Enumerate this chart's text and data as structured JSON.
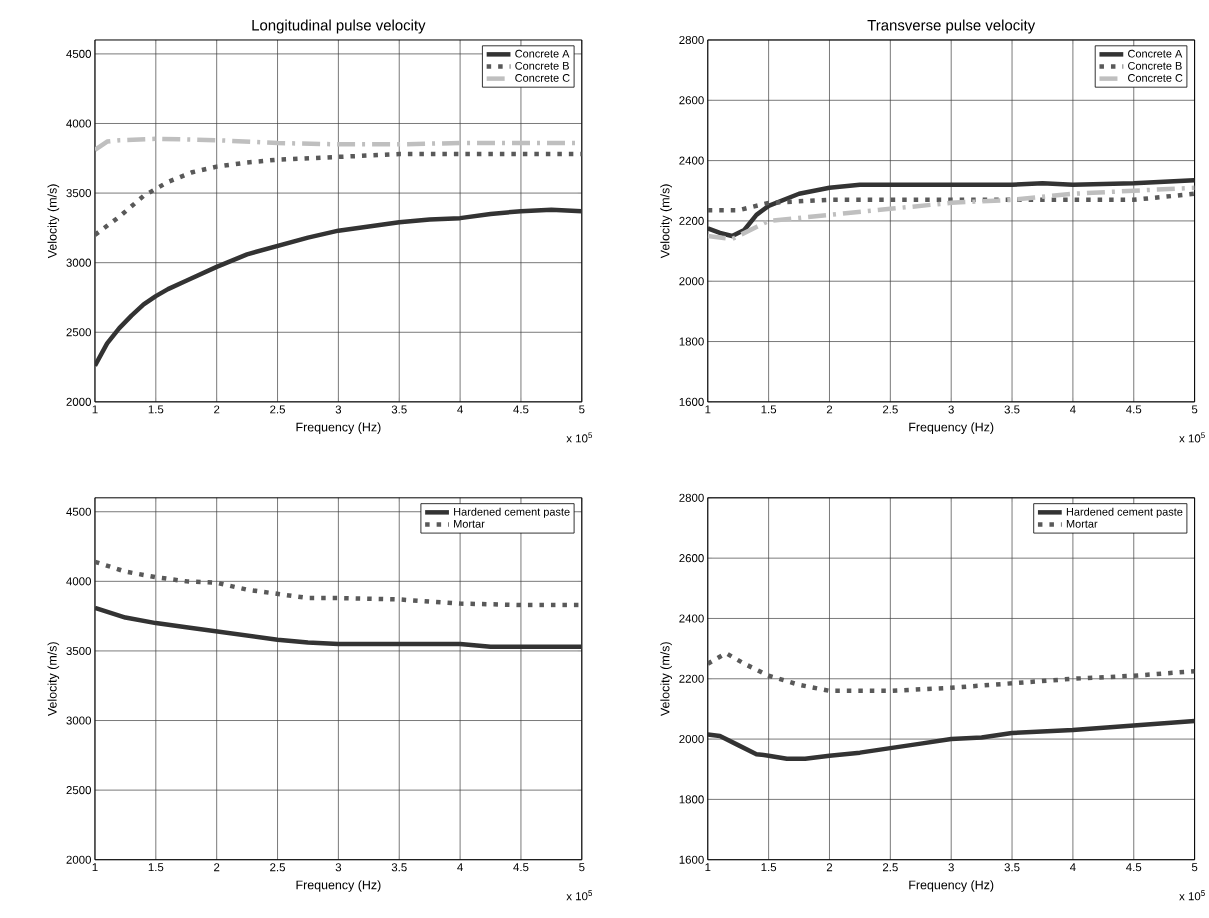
{
  "chart_data": [
    {
      "type": "line",
      "title": "Longitudinal pulse velocity",
      "xlabel": "Frequency (Hz)",
      "ylabel": "Velocity (m/s)",
      "annotations": [
        "x 10$^{5}$"
      ],
      "xlim": [
        1,
        5
      ],
      "ylim": [
        2000,
        4600
      ],
      "xticks": [
        1,
        1.5,
        2,
        2.5,
        3,
        3.5,
        4,
        4.5,
        5
      ],
      "yticks": [
        2000,
        2500,
        3000,
        3500,
        4000,
        4500
      ],
      "grid": true,
      "legend": "top right",
      "series": [
        {
          "name": "Concrete A",
          "color": "#333333",
          "line_style": "solid",
          "x": [
            1,
            1.1,
            1.2,
            1.3,
            1.4,
            1.5,
            1.6,
            1.75,
            2,
            2.25,
            2.5,
            2.75,
            3,
            3.25,
            3.5,
            3.75,
            4,
            4.25,
            4.5,
            4.75,
            5
          ],
          "values": [
            2260,
            2420,
            2530,
            2620,
            2700,
            2760,
            2810,
            2870,
            2970,
            3060,
            3120,
            3180,
            3230,
            3260,
            3290,
            3310,
            3320,
            3350,
            3370,
            3380,
            3370
          ]
        },
        {
          "name": "Concrete B",
          "color": "#595959",
          "line_style": "dotted",
          "x": [
            1,
            1.2,
            1.4,
            1.6,
            1.8,
            2,
            2.25,
            2.5,
            3,
            3.5,
            4,
            5
          ],
          "values": [
            3200,
            3330,
            3480,
            3580,
            3650,
            3690,
            3720,
            3740,
            3760,
            3780,
            3780,
            3780
          ]
        },
        {
          "name": "Concrete C",
          "color": "#bfbfbf",
          "line_style": "dashdot",
          "x": [
            1,
            1.1,
            1.2,
            1.5,
            2,
            2.5,
            3,
            3.5,
            4,
            4.5,
            5
          ],
          "values": [
            3810,
            3870,
            3880,
            3890,
            3880,
            3860,
            3850,
            3850,
            3860,
            3860,
            3860
          ]
        }
      ]
    },
    {
      "type": "line",
      "title": "Transverse pulse velocity",
      "xlabel": "Frequency (Hz)",
      "ylabel": "Velocity (m/s)",
      "annotations": [
        "x 10$^{5}$"
      ],
      "xlim": [
        1,
        5
      ],
      "ylim": [
        1600,
        2800
      ],
      "xticks": [
        1,
        1.5,
        2,
        2.5,
        3,
        3.5,
        4,
        4.5,
        5
      ],
      "yticks": [
        1600,
        1800,
        2000,
        2200,
        2400,
        2600,
        2800
      ],
      "grid": true,
      "legend": "top right",
      "series": [
        {
          "name": "Concrete A",
          "color": "#333333",
          "line_style": "solid",
          "x": [
            1,
            1.1,
            1.2,
            1.3,
            1.4,
            1.5,
            1.75,
            2,
            2.25,
            2.5,
            3,
            3.5,
            3.75,
            4,
            4.5,
            5
          ],
          "values": [
            2175,
            2160,
            2150,
            2170,
            2220,
            2250,
            2290,
            2310,
            2320,
            2320,
            2320,
            2320,
            2325,
            2320,
            2325,
            2335
          ]
        },
        {
          "name": "Concrete B",
          "color": "#595959",
          "line_style": "dotted",
          "x": [
            1,
            1.25,
            1.5,
            2,
            2.5,
            3,
            3.5,
            4,
            4.5,
            5
          ],
          "values": [
            2235,
            2235,
            2260,
            2270,
            2270,
            2270,
            2270,
            2270,
            2270,
            2290
          ]
        },
        {
          "name": "Concrete C",
          "color": "#bfbfbf",
          "line_style": "dashdot",
          "x": [
            1,
            1.2,
            1.4,
            1.5,
            2,
            2.5,
            3,
            3.5,
            4,
            4.5,
            5
          ],
          "values": [
            2150,
            2140,
            2180,
            2200,
            2220,
            2240,
            2260,
            2270,
            2290,
            2300,
            2310
          ]
        }
      ]
    },
    {
      "type": "line",
      "xlabel": "Frequency (Hz)",
      "ylabel": "Velocity (m/s)",
      "annotations": [
        "x 10$^{5}$"
      ],
      "xlim": [
        1,
        5
      ],
      "ylim": [
        2000,
        4600
      ],
      "xticks": [
        1,
        1.5,
        2,
        2.5,
        3,
        3.5,
        4,
        4.5,
        5
      ],
      "yticks": [
        2000,
        2500,
        3000,
        3500,
        4000,
        4500
      ],
      "grid": true,
      "legend": "top right",
      "series": [
        {
          "name": "Hardened cement paste",
          "color": "#333333",
          "line_style": "solid",
          "x": [
            1,
            1.25,
            1.5,
            1.75,
            2,
            2.25,
            2.5,
            2.75,
            3,
            3.5,
            4,
            4.25,
            5
          ],
          "values": [
            3810,
            3740,
            3700,
            3670,
            3640,
            3610,
            3580,
            3560,
            3550,
            3550,
            3550,
            3530,
            3530
          ]
        },
        {
          "name": "Mortar",
          "color": "#595959",
          "line_style": "dotted",
          "x": [
            1,
            1.25,
            1.5,
            1.75,
            2,
            2.25,
            2.5,
            2.75,
            3,
            3.5,
            4,
            4.5,
            5
          ],
          "values": [
            4140,
            4070,
            4030,
            4000,
            3990,
            3940,
            3910,
            3880,
            3880,
            3870,
            3840,
            3830,
            3830
          ]
        }
      ]
    },
    {
      "type": "line",
      "xlabel": "Frequency (Hz)",
      "ylabel": "Velocity (m/s)",
      "annotations": [
        "x 10$^{5}$"
      ],
      "xlim": [
        1,
        5
      ],
      "ylim": [
        1600,
        2800
      ],
      "xticks": [
        1,
        1.5,
        2,
        2.5,
        3,
        3.5,
        4,
        4.5,
        5
      ],
      "yticks": [
        1600,
        1800,
        2000,
        2200,
        2400,
        2600,
        2800
      ],
      "grid": true,
      "legend": "top right",
      "series": [
        {
          "name": "Hardened cement paste",
          "color": "#333333",
          "line_style": "solid",
          "x": [
            1,
            1.1,
            1.25,
            1.4,
            1.5,
            1.65,
            1.8,
            2,
            2.25,
            2.5,
            2.75,
            3,
            3.25,
            3.5,
            4,
            4.5,
            5
          ],
          "values": [
            2015,
            2010,
            1980,
            1950,
            1945,
            1935,
            1935,
            1945,
            1955,
            1970,
            1985,
            2000,
            2005,
            2020,
            2030,
            2045,
            2060
          ]
        },
        {
          "name": "Mortar",
          "color": "#595959",
          "line_style": "dotted",
          "x": [
            1,
            1.15,
            1.3,
            1.5,
            1.75,
            2,
            2.5,
            3,
            3.5,
            4,
            4.5,
            5
          ],
          "values": [
            2250,
            2285,
            2250,
            2210,
            2180,
            2160,
            2160,
            2170,
            2185,
            2200,
            2210,
            2225
          ]
        }
      ]
    }
  ]
}
